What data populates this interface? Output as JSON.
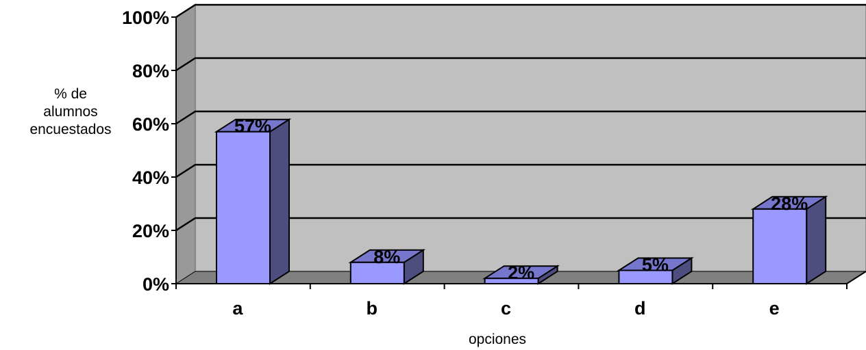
{
  "chart_data": {
    "type": "bar",
    "categories": [
      "a",
      "b",
      "c",
      "d",
      "e"
    ],
    "values": [
      57,
      8,
      2,
      5,
      28
    ],
    "data_labels": [
      "57%",
      "8%",
      "2%",
      "5%",
      "28%"
    ],
    "y_ticks": [
      "0%",
      "20%",
      "40%",
      "60%",
      "80%",
      "100%"
    ],
    "ylim": [
      0,
      100
    ],
    "ylabel": [
      "% de",
      "alumnos",
      "encuestados"
    ],
    "xlabel": "opciones",
    "title": "",
    "grid": true,
    "legend": "none",
    "colors": {
      "bar_front": "#9999ff",
      "bar_side": "#4d4d80",
      "bar_top": "#7676cc",
      "plot_back": "#c0c0c0",
      "plot_floor": "#808080",
      "plot_wall": "#999999"
    }
  }
}
